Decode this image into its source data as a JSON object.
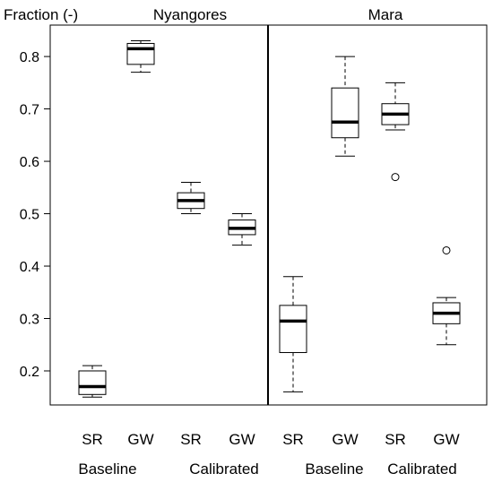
{
  "chart_data": {
    "type": "box",
    "ylabel": "Fraction (-)",
    "ylim": [
      0.135,
      0.86
    ],
    "yticks": [
      0.2,
      0.3,
      0.4,
      0.5,
      0.6,
      0.7,
      0.8
    ],
    "panels": [
      {
        "title": "Nyangores",
        "categories": [
          "SR",
          "GW",
          "SR",
          "GW"
        ],
        "groups": [
          "Baseline",
          "Calibrated"
        ],
        "boxes": [
          {
            "whisker_low": 0.15,
            "q1": 0.155,
            "median": 0.17,
            "q3": 0.2,
            "whisker_high": 0.21,
            "outliers": []
          },
          {
            "whisker_low": 0.77,
            "q1": 0.785,
            "median": 0.815,
            "q3": 0.825,
            "whisker_high": 0.83,
            "outliers": []
          },
          {
            "whisker_low": 0.5,
            "q1": 0.51,
            "median": 0.525,
            "q3": 0.54,
            "whisker_high": 0.56,
            "outliers": []
          },
          {
            "whisker_low": 0.44,
            "q1": 0.46,
            "median": 0.472,
            "q3": 0.488,
            "whisker_high": 0.5,
            "outliers": []
          }
        ]
      },
      {
        "title": "Mara",
        "categories": [
          "SR",
          "GW",
          "SR",
          "GW"
        ],
        "groups": [
          "Baseline",
          "Calibrated"
        ],
        "boxes": [
          {
            "whisker_low": 0.16,
            "q1": 0.235,
            "median": 0.295,
            "q3": 0.325,
            "whisker_high": 0.38,
            "outliers": []
          },
          {
            "whisker_low": 0.61,
            "q1": 0.645,
            "median": 0.675,
            "q3": 0.74,
            "whisker_high": 0.8,
            "outliers": []
          },
          {
            "whisker_low": 0.66,
            "q1": 0.67,
            "median": 0.69,
            "q3": 0.71,
            "whisker_high": 0.75,
            "outliers": [
              0.57
            ]
          },
          {
            "whisker_low": 0.25,
            "q1": 0.29,
            "median": 0.31,
            "q3": 0.33,
            "whisker_high": 0.34,
            "outliers": [
              0.43
            ]
          }
        ]
      }
    ],
    "grid": false,
    "legend": "none"
  }
}
